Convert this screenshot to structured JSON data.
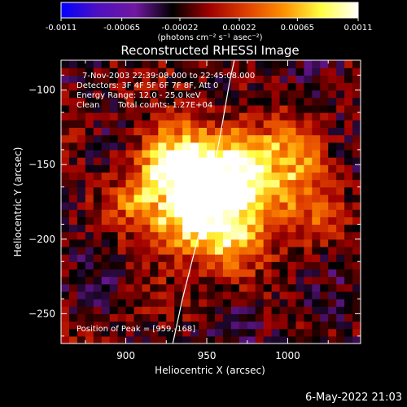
{
  "chart_data": {
    "type": "heatmap",
    "title": "Reconstructed RHESSI Image",
    "xlabel": "Heliocentric X (arcsec)",
    "ylabel": "Heliocentric Y (arcsec)",
    "xlim": [
      860,
      1045
    ],
    "ylim": [
      -270,
      -80
    ],
    "xticks": [
      900,
      950,
      1000
    ],
    "yticks": [
      -100,
      -150,
      -200,
      -250
    ],
    "colorbar": {
      "min": -0.0011,
      "max": 0.0011,
      "ticks": [
        "-0.0011",
        "-0.00065",
        "-0.00022",
        "0.00022",
        "0.00065",
        "0.0011"
      ],
      "unit_label": "(photons cm⁻² s⁻¹ asec⁻²)",
      "colors": [
        "#0000ff",
        "#5010c0",
        "#7018a0",
        "#000000",
        "#a00000",
        "#e04000",
        "#ff9000",
        "#ffff40",
        "#ffffff"
      ]
    },
    "annotations": {
      "time_range": "7-Nov-2003 22:39:08.000 to 22:45:08.000",
      "detectors": "Detectors: 3F 4F 5F 6F 7F 8F, Att 0",
      "energy": "Energy Range: 12.0 - 25.0 keV",
      "algorithm": "Clean",
      "counts": "Total counts: 1.27E+04",
      "peak": "Position of Peak = [959,-168]"
    },
    "peak": [
      959,
      -168
    ],
    "limb_curve": [
      [
        929,
        -270
      ],
      [
        935,
        -240
      ],
      [
        942,
        -210
      ],
      [
        949,
        -180
      ],
      [
        955,
        -150
      ],
      [
        960,
        -120
      ],
      [
        964,
        -95
      ],
      [
        967,
        -80
      ]
    ],
    "grid": false
  },
  "footer": {
    "timestamp": "6-May-2022 21:03"
  }
}
